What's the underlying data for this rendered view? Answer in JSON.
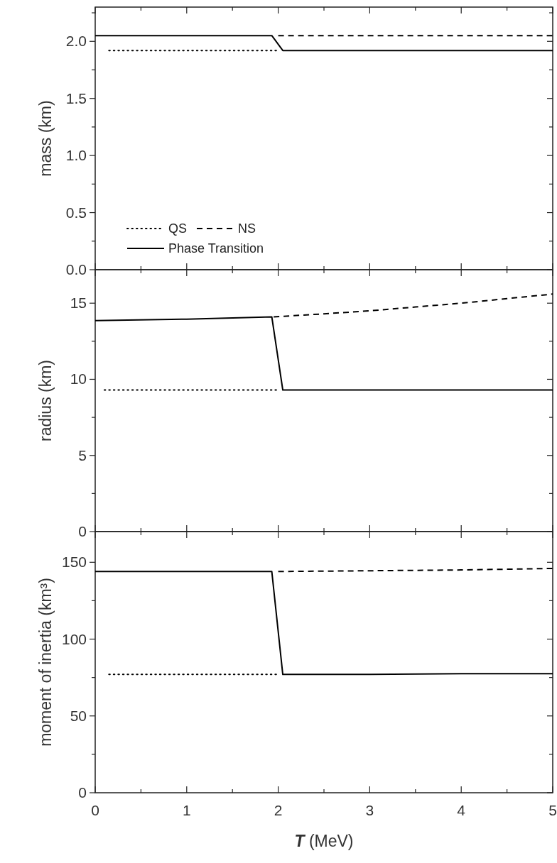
{
  "chart_data": [
    {
      "type": "line",
      "ylabel": "mass (km)",
      "xlim": [
        0,
        5
      ],
      "ylim": [
        0,
        2.3
      ],
      "xticks": [
        0,
        {
          "value": 0.5,
          "label": null
        },
        1,
        {
          "value": 1.5,
          "label": null
        },
        2,
        {
          "value": 2.5,
          "label": null
        },
        3,
        {
          "value": 3.5,
          "label": null
        },
        4,
        {
          "value": 4.5,
          "label": null
        },
        5
      ],
      "yticks": [
        {
          "value": 0,
          "label": "0.0"
        },
        {
          "value": 0.25,
          "label": null
        },
        {
          "value": 0.5,
          "label": "0.5"
        },
        {
          "value": 0.75,
          "label": null
        },
        {
          "value": 1,
          "label": "1.0"
        },
        {
          "value": 1.25,
          "label": null
        },
        {
          "value": 1.5,
          "label": "1.5"
        },
        {
          "value": 1.75,
          "label": null
        },
        {
          "value": 2,
          "label": "2.0"
        },
        {
          "value": 2.25,
          "label": null
        }
      ],
      "tick_labels": "y",
      "legend": "bottom left",
      "grid": false,
      "series": [
        {
          "name": "QS",
          "color": "#000000",
          "line_style": "dotted",
          "x": [
            0.15,
            2
          ],
          "values": [
            1.92,
            1.92
          ]
        },
        {
          "name": "NS",
          "color": "#000000",
          "line_style": "dashed",
          "x": [
            2,
            3,
            4,
            5
          ],
          "values": [
            2.05,
            2.05,
            2.05,
            2.05
          ]
        },
        {
          "name": "Phase Transition",
          "color": "#000000",
          "line_style": "solid",
          "x": [
            0,
            1,
            1.93,
            2.05,
            3,
            4,
            5
          ],
          "values": [
            2.05,
            2.05,
            2.05,
            1.92,
            1.92,
            1.92,
            1.92
          ]
        }
      ]
    },
    {
      "type": "line",
      "ylabel": "radius (km)",
      "xlim": [
        0,
        5
      ],
      "ylim": [
        0,
        17.2
      ],
      "xticks": [
        0,
        {
          "value": 0.5,
          "label": null
        },
        1,
        {
          "value": 1.5,
          "label": null
        },
        2,
        {
          "value": 2.5,
          "label": null
        },
        3,
        {
          "value": 3.5,
          "label": null
        },
        4,
        {
          "value": 4.5,
          "label": null
        },
        5
      ],
      "yticks": [
        0,
        {
          "value": 2.5,
          "label": null
        },
        5,
        {
          "value": 7.5,
          "label": null
        },
        10,
        {
          "value": 12.5,
          "label": null
        },
        15
      ],
      "tick_labels": "y",
      "grid": false,
      "series": [
        {
          "color": "#000000",
          "line_style": "dotted",
          "x": [
            0.1,
            2
          ],
          "values": [
            9.3,
            9.3
          ]
        },
        {
          "color": "#000000",
          "line_style": "dashed",
          "x": [
            1.95,
            2.5,
            3,
            3.5,
            4,
            4.5,
            5
          ],
          "values": [
            14.1,
            14.3,
            14.5,
            14.75,
            15.0,
            15.3,
            15.6
          ]
        },
        {
          "color": "#000000",
          "line_style": "solid",
          "x": [
            0,
            1,
            1.93,
            2.05,
            3,
            4,
            5
          ],
          "values": [
            13.85,
            13.95,
            14.1,
            9.3,
            9.3,
            9.3,
            9.3
          ]
        }
      ]
    },
    {
      "type": "line",
      "xlabel": "T (MeV)",
      "ylabel": "moment of inertia (km³)",
      "xlim": [
        0,
        5
      ],
      "ylim": [
        0,
        170
      ],
      "xticks": [
        0,
        {
          "value": 0.5,
          "label": null
        },
        1,
        {
          "value": 1.5,
          "label": null
        },
        2,
        {
          "value": 2.5,
          "label": null
        },
        3,
        {
          "value": 3.5,
          "label": null
        },
        4,
        {
          "value": 4.5,
          "label": null
        },
        5
      ],
      "yticks": [
        0,
        {
          "value": 25,
          "label": null
        },
        50,
        {
          "value": 75,
          "label": null
        },
        100,
        {
          "value": 125,
          "label": null
        },
        150
      ],
      "grid": false,
      "series": [
        {
          "color": "#000000",
          "line_style": "dotted",
          "x": [
            0.15,
            2
          ],
          "values": [
            77,
            77
          ]
        },
        {
          "color": "#000000",
          "line_style": "dashed",
          "x": [
            2,
            3,
            4,
            5
          ],
          "values": [
            144,
            144.5,
            145,
            146
          ]
        },
        {
          "color": "#000000",
          "line_style": "solid",
          "x": [
            0,
            1,
            1.93,
            2.05,
            3,
            4,
            5
          ],
          "values": [
            144,
            144,
            144,
            77,
            77,
            77.5,
            77.5
          ]
        }
      ]
    }
  ]
}
